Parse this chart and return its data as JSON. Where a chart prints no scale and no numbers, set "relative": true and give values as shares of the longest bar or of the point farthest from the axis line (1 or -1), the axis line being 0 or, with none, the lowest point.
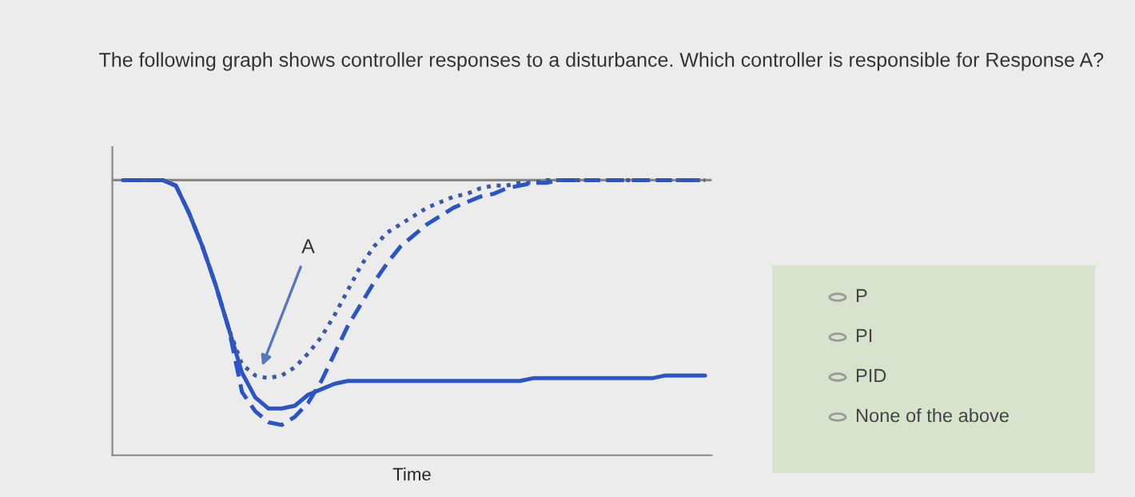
{
  "chart_data": {
    "type": "line",
    "relative": true,
    "title": "The following graph shows controller responses to a disturbance. Which controller is responsible for Response A?",
    "xlabel": "Time",
    "categories": [
      null,
      null,
      null,
      null,
      null,
      null,
      null,
      null,
      null,
      null,
      null,
      null,
      null,
      null,
      null,
      null,
      null,
      null,
      null,
      null,
      null,
      null,
      null,
      null,
      null,
      null,
      null,
      null,
      null,
      null,
      null,
      null,
      null,
      null,
      null,
      null,
      null,
      null,
      null,
      null,
      null,
      null,
      null,
      null,
      null
    ],
    "series": [
      {
        "color": "#2b55c6",
        "line_style": "solid",
        "values": [
          1.0,
          1.0,
          1.0,
          1.0,
          0.98,
          0.88,
          0.76,
          0.62,
          0.46,
          0.3,
          0.21,
          0.17,
          0.17,
          0.18,
          0.22,
          0.24,
          0.26,
          0.27,
          0.27,
          0.27,
          0.27,
          0.27,
          0.27,
          0.27,
          0.27,
          0.27,
          0.27,
          0.27,
          0.27,
          0.27,
          0.27,
          0.28,
          0.28,
          0.28,
          0.28,
          0.28,
          0.28,
          0.28,
          0.28,
          0.28,
          0.28,
          0.29,
          0.29,
          0.29,
          0.29
        ]
      },
      {
        "color": "#3a5aa8",
        "line_style": "dotted",
        "values": [
          1.0,
          1.0,
          1.0,
          1.0,
          0.98,
          0.88,
          0.76,
          0.62,
          0.46,
          0.33,
          0.29,
          0.28,
          0.29,
          0.32,
          0.37,
          0.43,
          0.51,
          0.6,
          0.69,
          0.76,
          0.81,
          0.84,
          0.87,
          0.9,
          0.92,
          0.94,
          0.95,
          0.97,
          0.98,
          0.98,
          0.99,
          0.99,
          1.0,
          1.0,
          1.0,
          1.0,
          1.0,
          1.0,
          1.0,
          1.0,
          1.0,
          1.0,
          1.0,
          1.0,
          1.0
        ]
      },
      {
        "color": "#2b55c6",
        "line_style": "dashed",
        "values": [
          1.0,
          1.0,
          1.0,
          1.0,
          0.98,
          0.88,
          0.76,
          0.62,
          0.46,
          0.23,
          0.16,
          0.12,
          0.11,
          0.14,
          0.19,
          0.27,
          0.37,
          0.47,
          0.55,
          0.63,
          0.7,
          0.76,
          0.8,
          0.84,
          0.87,
          0.9,
          0.92,
          0.94,
          0.95,
          0.97,
          0.98,
          0.99,
          0.99,
          1.0,
          1.0,
          1.0,
          1.0,
          1.0,
          1.0,
          1.0,
          1.0,
          1.0,
          1.0,
          1.0,
          1.0
        ]
      }
    ],
    "ref_lines": [
      {
        "axis": "y",
        "value": 1.0,
        "color": "#888888"
      }
    ],
    "annotations": [
      "A",
      "P",
      "PI",
      "PID",
      "None of the above"
    ],
    "grid": false,
    "legend": false
  }
}
